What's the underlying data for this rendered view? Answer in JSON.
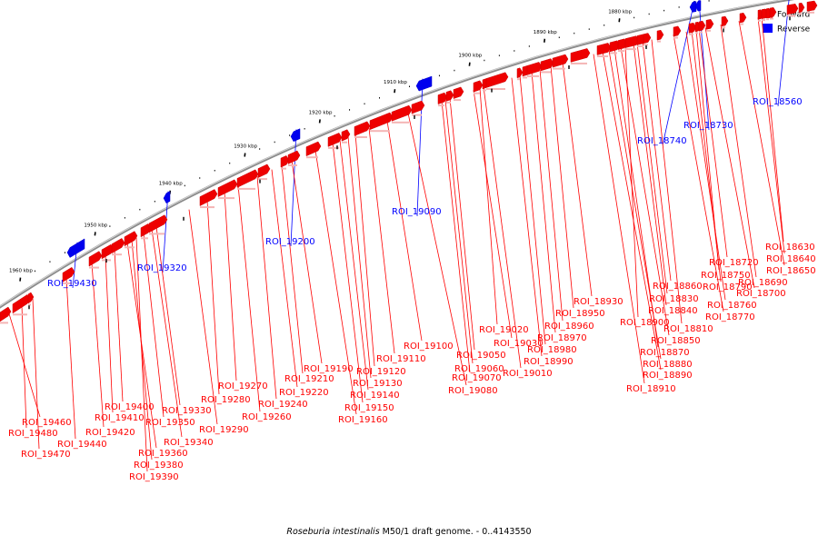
{
  "caption": {
    "italic": "Roseburia intestinalis",
    "rest": " M50/1 draft genome. - 0..4143550"
  },
  "legend": [
    {
      "label": "Forward",
      "color": "#ff0000"
    },
    {
      "label": "Reverse",
      "color": "#0000ff"
    }
  ],
  "kbp_ticks": [
    {
      "label": "1960 kbp",
      "kbp": 1960
    },
    {
      "label": "1950 kbp",
      "kbp": 1950
    },
    {
      "label": "1940 kbp",
      "kbp": 1940
    },
    {
      "label": "1930 kbp",
      "kbp": 1930
    },
    {
      "label": "1920 kbp",
      "kbp": 1920
    },
    {
      "label": "1910 kbp",
      "kbp": 1910
    },
    {
      "label": "1900 kbp",
      "kbp": 1900
    },
    {
      "label": "1890 kbp",
      "kbp": 1890
    },
    {
      "label": "1880 kbp",
      "kbp": 1880
    },
    {
      "label": "1870 kbp",
      "kbp": 1870
    },
    {
      "label": "1860 kbp",
      "kbp": 1860
    }
  ],
  "reverse_labels": [
    "ROI_19430",
    "ROI_19320",
    "ROI_19200",
    "ROI_19090",
    "ROI_18740",
    "ROI_18730",
    "ROI_18560"
  ],
  "forward_labels": [
    "ROI_19460",
    "ROI_19480",
    "ROI_19470",
    "ROI_19440",
    "ROI_19420",
    "ROI_19410",
    "ROI_19400",
    "ROI_19360",
    "ROI_19380",
    "ROI_19390",
    "ROI_19350",
    "ROI_19340",
    "ROI_19330",
    "ROI_19290",
    "ROI_19280",
    "ROI_19270",
    "ROI_19260",
    "ROI_19240",
    "ROI_19220",
    "ROI_19210",
    "ROI_19190",
    "ROI_19160",
    "ROI_19150",
    "ROI_19140",
    "ROI_19130",
    "ROI_19120",
    "ROI_19110",
    "ROI_19100",
    "ROI_19080",
    "ROI_19070",
    "ROI_19060",
    "ROI_19050",
    "ROI_19030",
    "ROI_19020",
    "ROI_19010",
    "ROI_18990",
    "ROI_18980",
    "ROI_18970",
    "ROI_18960",
    "ROI_18950",
    "ROI_18930",
    "ROI_18910",
    "ROI_18890",
    "ROI_18880",
    "ROI_18870",
    "ROI_18850",
    "ROI_18900",
    "ROI_18840",
    "ROI_18830",
    "ROI_18860",
    "ROI_18810",
    "ROI_18770",
    "ROI_18760",
    "ROI_18790",
    "ROI_18750",
    "ROI_18720",
    "ROI_18700",
    "ROI_18690",
    "ROI_18650",
    "ROI_18640",
    "ROI_18630"
  ]
}
